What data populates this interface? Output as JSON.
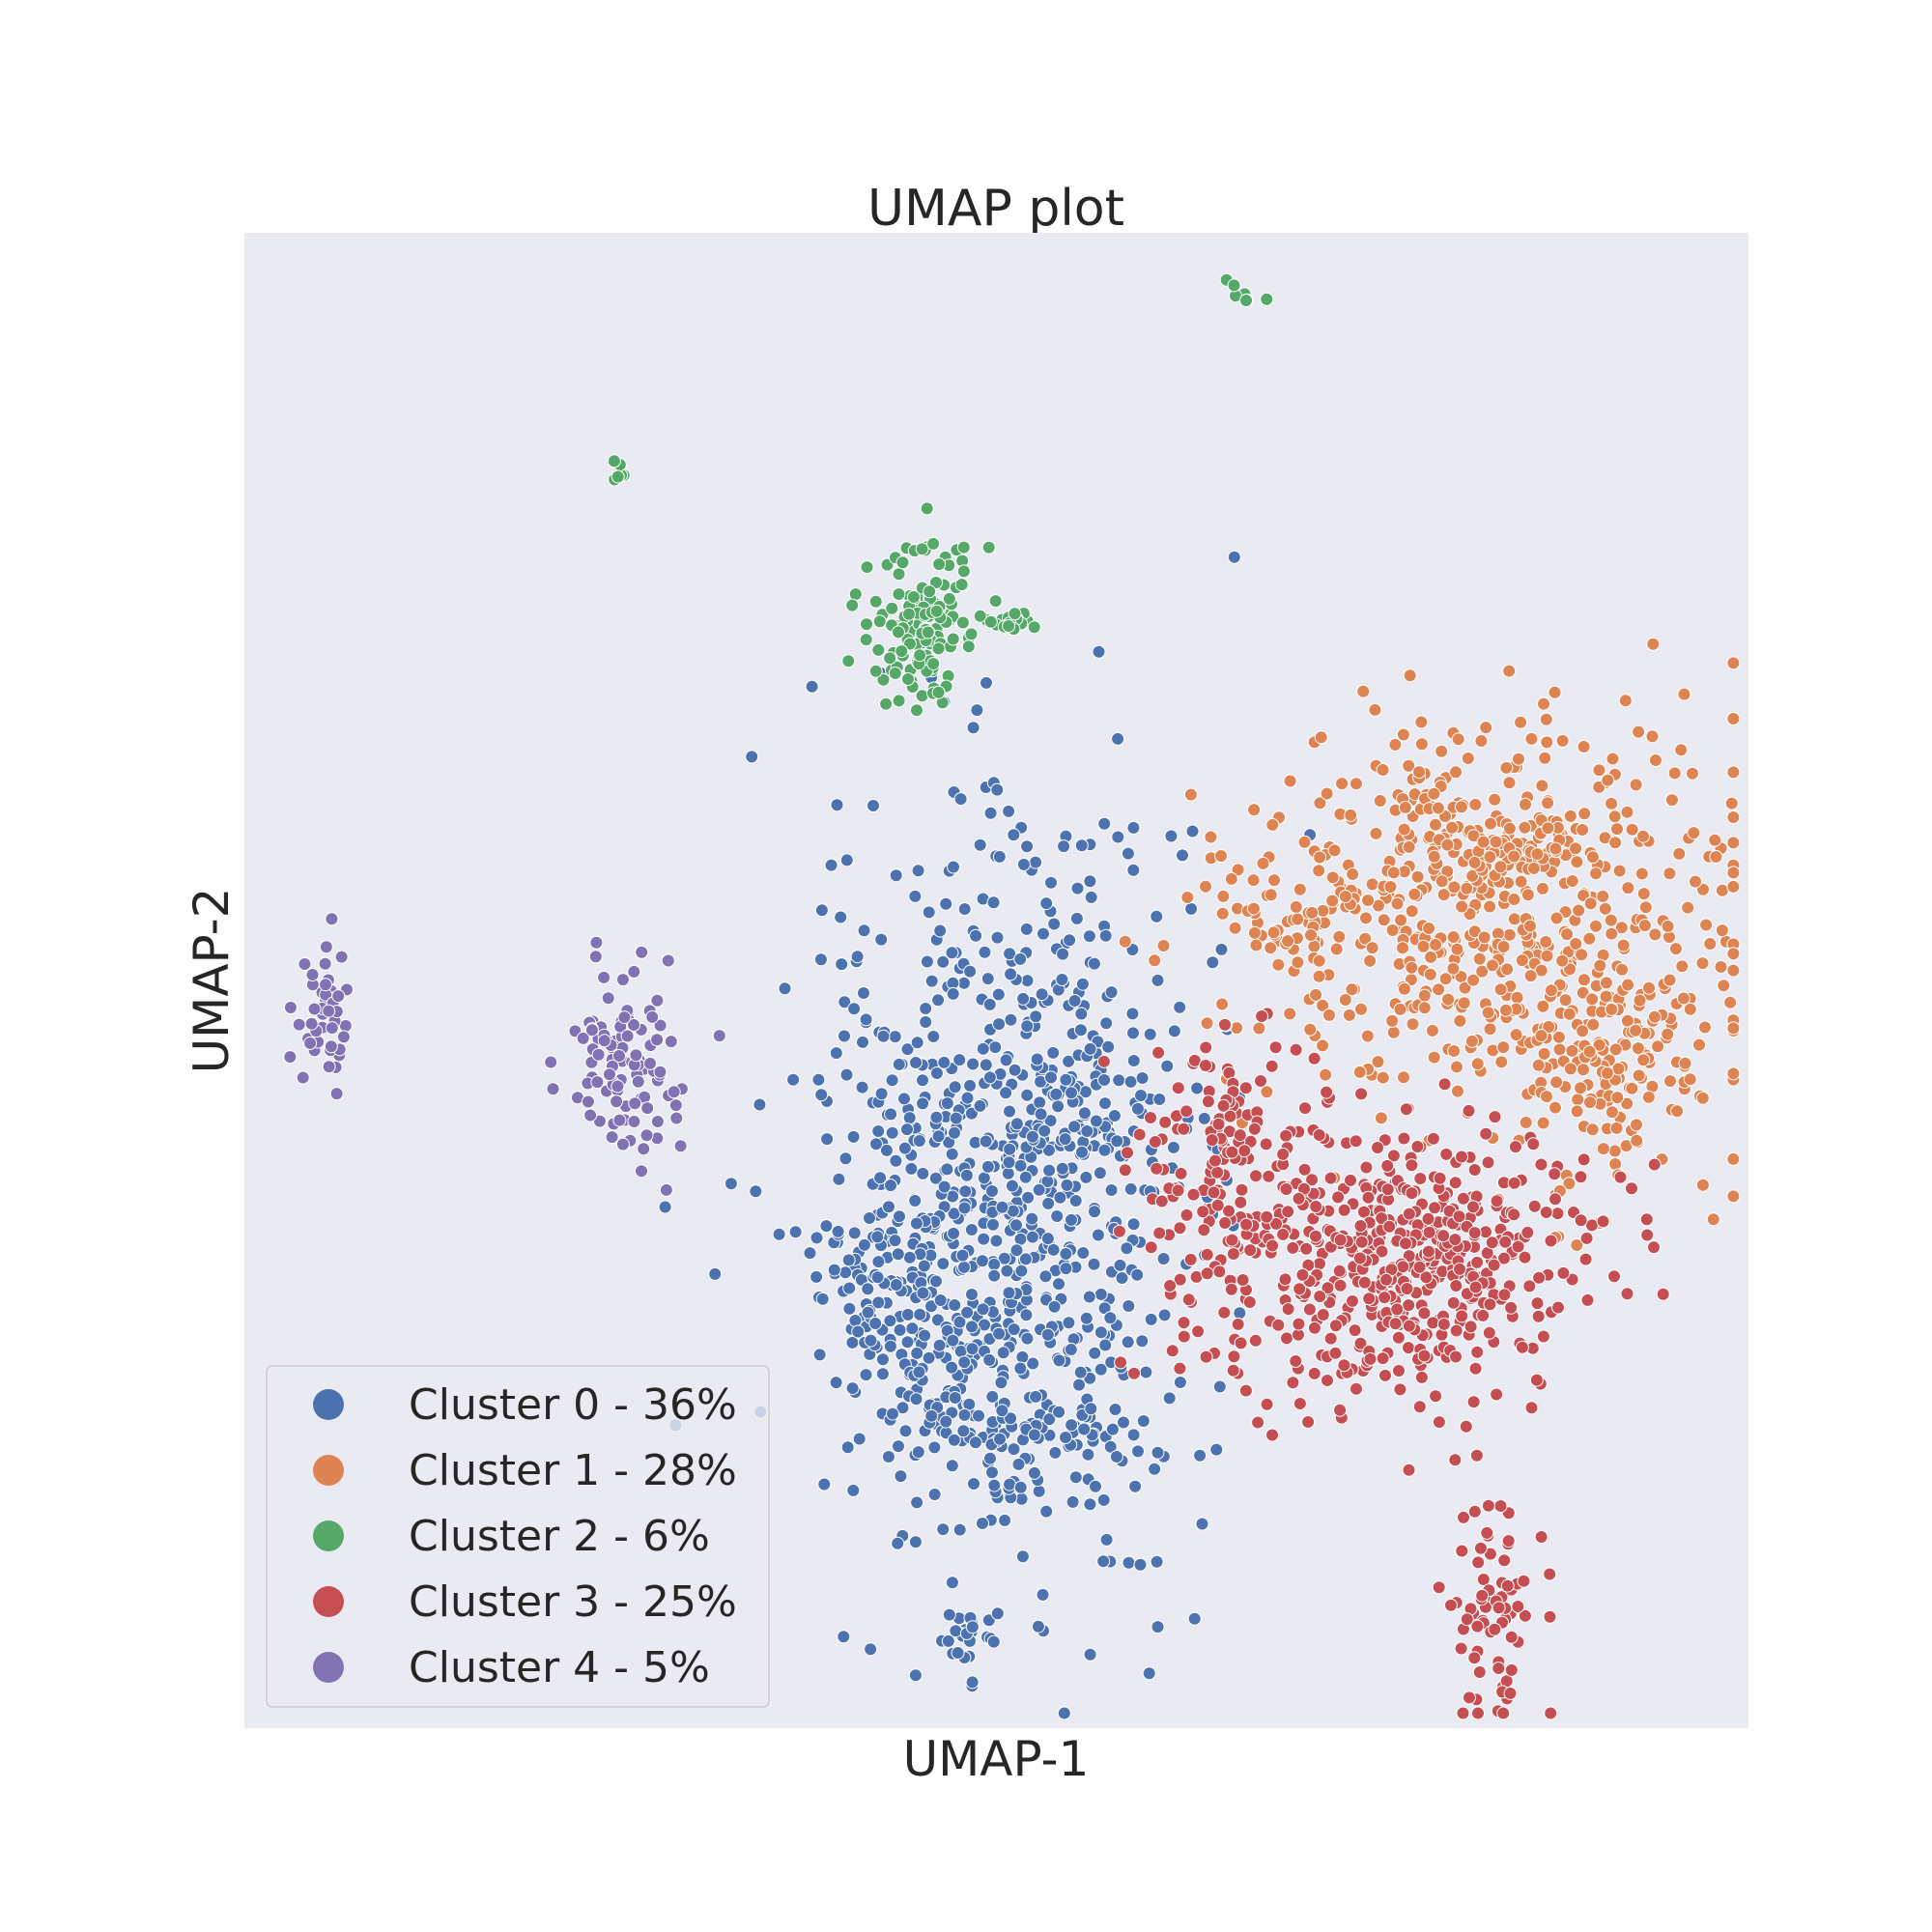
{
  "chart_data": {
    "type": "scatter",
    "title": "UMAP plot",
    "xlabel": "UMAP-1",
    "ylabel": "UMAP-2",
    "xlim": [
      0,
      100
    ],
    "ylim": [
      0,
      100
    ],
    "ticks_visible": false,
    "grid": false,
    "background": "#eaeaf2",
    "marker_edge_color": "#ffffff",
    "legend": {
      "placement": "lower-left"
    },
    "series": [
      {
        "name": "Cluster 0 - 36%",
        "color": "#4c72b0",
        "share_percent": 36,
        "point_count": 1060,
        "blobs": [
          {
            "cx": 50.5,
            "cy": 36,
            "sx": 6.5,
            "sy": 12.5,
            "w": 0.7
          },
          {
            "cx": 46.5,
            "cy": 26,
            "sx": 4.0,
            "sy": 5.0,
            "w": 0.14
          },
          {
            "cx": 56.5,
            "cy": 40,
            "sx": 3.5,
            "sy": 2.5,
            "w": 0.07
          },
          {
            "cx": 53.5,
            "cy": 19,
            "sx": 4.5,
            "sy": 1.2,
            "w": 0.05
          },
          {
            "cx": 41.5,
            "cy": 30,
            "sx": 1.5,
            "sy": 2.2,
            "w": 0.02
          },
          {
            "cx": 48.0,
            "cy": 6,
            "sx": 1.0,
            "sy": 1.2,
            "w": 0.02
          }
        ]
      },
      {
        "name": "Cluster 1 - 28%",
        "color": "#dd8452",
        "share_percent": 28,
        "point_count": 820,
        "blobs": [
          {
            "cx": 83,
            "cy": 55,
            "sx": 8.0,
            "sy": 6.5,
            "w": 0.72
          },
          {
            "cx": 91,
            "cy": 45,
            "sx": 3.0,
            "sy": 4.5,
            "w": 0.18
          },
          {
            "cx": 70,
            "cy": 54,
            "sx": 2.0,
            "sy": 2.0,
            "w": 0.05
          },
          {
            "cx": 85,
            "cy": 59.5,
            "sx": 2.5,
            "sy": 1.0,
            "w": 0.05
          }
        ]
      },
      {
        "name": "Cluster 2 - 6%",
        "color": "#55a868",
        "share_percent": 6,
        "point_count": 175,
        "blobs": [
          {
            "cx": 45,
            "cy": 74,
            "sx": 2.0,
            "sy": 2.6,
            "w": 0.8
          },
          {
            "cx": 51.5,
            "cy": 74,
            "sx": 0.8,
            "sy": 0.6,
            "w": 0.12
          },
          {
            "cx": 25,
            "cy": 84,
            "sx": 0.3,
            "sy": 0.4,
            "w": 0.04
          },
          {
            "cx": 66.5,
            "cy": 95.5,
            "sx": 0.8,
            "sy": 0.8,
            "w": 0.04
          }
        ]
      },
      {
        "name": "Cluster 3 - 25%",
        "color": "#c44e52",
        "share_percent": 25,
        "point_count": 740,
        "blobs": [
          {
            "cx": 77,
            "cy": 31,
            "sx": 6.0,
            "sy": 4.5,
            "w": 0.72
          },
          {
            "cx": 66,
            "cy": 38,
            "sx": 3.2,
            "sy": 4.5,
            "w": 0.18
          },
          {
            "cx": 83,
            "cy": 8,
            "sx": 1.5,
            "sy": 3.5,
            "w": 0.1
          }
        ]
      },
      {
        "name": "Cluster 4 - 5%",
        "color": "#8172b3",
        "share_percent": 5,
        "point_count": 150,
        "blobs": [
          {
            "cx": 25.5,
            "cy": 44.5,
            "sx": 2.0,
            "sy": 3.0,
            "w": 0.7
          },
          {
            "cx": 5.5,
            "cy": 48,
            "sx": 1.0,
            "sy": 2.5,
            "w": 0.3
          }
        ]
      }
    ]
  }
}
